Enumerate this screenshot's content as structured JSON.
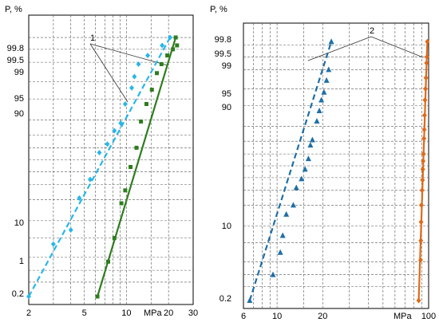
{
  "chart_data": [
    {
      "type": "scatter",
      "ylabel": "P, %",
      "xunit": "MPa",
      "xscale": "log",
      "yscale": "probability",
      "xlim": [
        2,
        30
      ],
      "ylim": [
        0.2,
        99.8
      ],
      "xticks": [
        "2",
        "5",
        "10",
        "20",
        "30"
      ],
      "yticks": [
        "0.2",
        "1",
        "10",
        "90",
        "95",
        "99",
        "99.5",
        "99.8"
      ],
      "annotation": "1",
      "grid": "dashed",
      "series": [
        {
          "color": "#29b6e8",
          "marker": "diamond",
          "fit": {
            "style": "dashed",
            "from": [
              2.0,
              0.2
            ],
            "to": [
              20.5,
              99.5
            ]
          },
          "points": [
            [
              2.0,
              0.2
            ],
            [
              3.0,
              3.8
            ],
            [
              4.0,
              7.0
            ],
            [
              4.6,
              21.0
            ],
            [
              5.5,
              34.0
            ],
            [
              6.4,
              56.0
            ],
            [
              7.3,
              63.0
            ],
            [
              8.2,
              73.0
            ],
            [
              9.1,
              78.0
            ],
            [
              9.8,
              88.0
            ],
            [
              10.9,
              93.5
            ],
            [
              11.4,
              96.0
            ],
            [
              12.2,
              97.8
            ],
            [
              14.2,
              98.6
            ],
            [
              18.0,
              99.2
            ],
            [
              20.5,
              99.5
            ]
          ]
        },
        {
          "color": "#2e7d1f",
          "marker": "square",
          "fit": {
            "style": "solid",
            "from": [
              6.2,
              0.2
            ],
            "to": [
              22.5,
              99.5
            ]
          },
          "points": [
            [
              6.2,
              0.2
            ],
            [
              7.4,
              1.6
            ],
            [
              8.2,
              5.0
            ],
            [
              9.2,
              18.0
            ],
            [
              9.8,
              26.0
            ],
            [
              10.7,
              44.0
            ],
            [
              11.8,
              60.0
            ],
            [
              12.7,
              79.0
            ],
            [
              13.9,
              88.0
            ],
            [
              15.2,
              93.0
            ],
            [
              16.5,
              96.6
            ],
            [
              17.8,
              97.8
            ],
            [
              19.6,
              98.6
            ],
            [
              21.5,
              99.0
            ],
            [
              22.5,
              99.5
            ],
            [
              23.0,
              99.2
            ]
          ]
        }
      ]
    },
    {
      "type": "scatter",
      "ylabel": "P, %",
      "xunit": "MPa",
      "xscale": "log",
      "yscale": "probability",
      "xlim": [
        6,
        100
      ],
      "ylim": [
        0.2,
        99.8
      ],
      "xticks": [
        "6",
        "10",
        "20",
        "100"
      ],
      "yticks": [
        "0.2",
        "10",
        "90",
        "95",
        "99",
        "99.5",
        "99.8"
      ],
      "annotation": "2",
      "grid": "dashed",
      "series": [
        {
          "color": "#1f6fa8",
          "marker": "triangle",
          "fit": {
            "style": "dashed",
            "from": [
              6.6,
              0.2
            ],
            "to": [
              22.8,
              99.6
            ]
          },
          "points": [
            [
              6.6,
              0.2
            ],
            [
              9.4,
              1.0
            ],
            [
              10.5,
              3.2
            ],
            [
              10.9,
              6.8
            ],
            [
              11.5,
              15.0
            ],
            [
              12.8,
              20.0
            ],
            [
              13.4,
              32.0
            ],
            [
              14.5,
              39.0
            ],
            [
              15.3,
              47.0
            ],
            [
              16.1,
              56.0
            ],
            [
              16.6,
              67.0
            ],
            [
              17.1,
              71.0
            ],
            [
              18.3,
              83.0
            ],
            [
              19.0,
              88.0
            ],
            [
              19.6,
              92.0
            ],
            [
              20.4,
              94.2
            ],
            [
              21.2,
              96.6
            ],
            [
              21.9,
              98.0
            ],
            [
              22.8,
              99.6
            ]
          ]
        },
        {
          "color": "#e06a17",
          "marker": "diamond",
          "fit": {
            "style": "solid",
            "from": [
              86.0,
              0.2
            ],
            "to": [
              98.0,
              99.6
            ]
          },
          "points": [
            [
              86.0,
              0.2
            ],
            [
              88.5,
              2.2
            ],
            [
              88.8,
              5.5
            ],
            [
              89.2,
              11.5
            ],
            [
              89.6,
              20.0
            ],
            [
              90.5,
              30.0
            ],
            [
              91.1,
              38.0
            ],
            [
              91.5,
              47.0
            ],
            [
              92.0,
              54.0
            ],
            [
              92.6,
              60.0
            ],
            [
              93.2,
              72.0
            ],
            [
              93.6,
              78.0
            ],
            [
              94.0,
              86.0
            ],
            [
              94.6,
              92.0
            ],
            [
              95.2,
              95.0
            ],
            [
              96.0,
              97.0
            ],
            [
              96.8,
              98.6
            ],
            [
              97.4,
              99.0
            ],
            [
              98.0,
              99.6
            ]
          ]
        }
      ]
    }
  ]
}
